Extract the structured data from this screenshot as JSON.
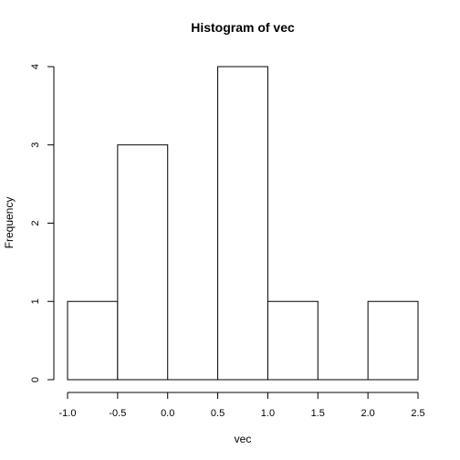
{
  "chart_data": {
    "type": "bar",
    "subtype": "histogram",
    "title": "Histogram of vec",
    "xlabel": "vec",
    "ylabel": "Frequency",
    "bins": [
      {
        "start": -1.0,
        "end": -0.5,
        "count": 1
      },
      {
        "start": -0.5,
        "end": 0.0,
        "count": 3
      },
      {
        "start": 0.0,
        "end": 0.5,
        "count": 0
      },
      {
        "start": 0.5,
        "end": 1.0,
        "count": 4
      },
      {
        "start": 1.0,
        "end": 1.5,
        "count": 1
      },
      {
        "start": 1.5,
        "end": 2.0,
        "count": 0
      },
      {
        "start": 2.0,
        "end": 2.5,
        "count": 1
      }
    ],
    "xlim": [
      -1.0,
      2.5
    ],
    "ylim": [
      0,
      4
    ],
    "x_ticks": [
      -1.0,
      -0.5,
      0.0,
      0.5,
      1.0,
      1.5,
      2.0,
      2.5
    ],
    "x_tick_labels": [
      "-1.0",
      "-0.5",
      "0.0",
      "0.5",
      "1.0",
      "1.5",
      "2.0",
      "2.5"
    ],
    "y_ticks": [
      0,
      1,
      2,
      3,
      4
    ],
    "y_tick_labels": [
      "0",
      "1",
      "2",
      "3",
      "4"
    ],
    "grid": false,
    "bar_fill": "#ffffff",
    "bar_stroke": "#000000"
  }
}
